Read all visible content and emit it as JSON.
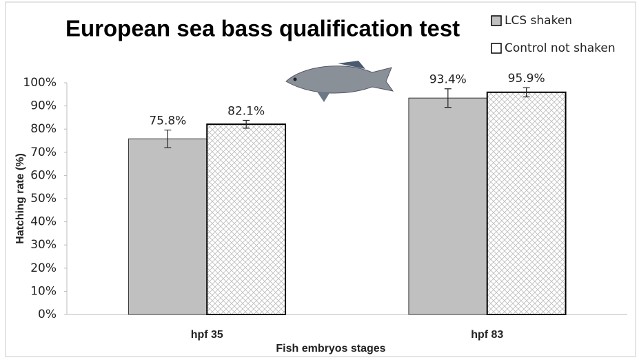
{
  "chart_data": {
    "type": "bar",
    "title": "European sea bass  qualification test",
    "categories": [
      "hpf 35",
      "hpf 83"
    ],
    "series": [
      {
        "name": "LCS shaken",
        "color": "#c0c0c0",
        "hatch": false,
        "values": [
          75.8,
          93.4
        ],
        "value_labels": [
          "75.8%",
          "93.4%"
        ],
        "errors": [
          3.8,
          4
        ]
      },
      {
        "name": "Control not shaken",
        "color": "#ffffff",
        "hatch": true,
        "values": [
          82.1,
          95.9
        ],
        "value_labels": [
          "82.1%",
          "95.9%"
        ],
        "errors": [
          1.7,
          2
        ]
      }
    ],
    "ylim": [
      0,
      100
    ],
    "yticks": [
      {
        "value": 0,
        "label": "0%"
      },
      {
        "value": 10,
        "label": "10%"
      },
      {
        "value": 20,
        "label": "20%"
      },
      {
        "value": 30,
        "label": "30%"
      },
      {
        "value": 40,
        "label": "40%"
      },
      {
        "value": 50,
        "label": "50%"
      },
      {
        "value": 60,
        "label": "60%"
      },
      {
        "value": 70,
        "label": "70%"
      },
      {
        "value": 80,
        "label": "80%"
      },
      {
        "value": 90,
        "label": "90%"
      },
      {
        "value": 100,
        "label": "100%"
      }
    ],
    "ylabel": "Hatching rate (%)",
    "xlabel": "Fish embryos stages",
    "grid": false,
    "legend": "top-right"
  }
}
